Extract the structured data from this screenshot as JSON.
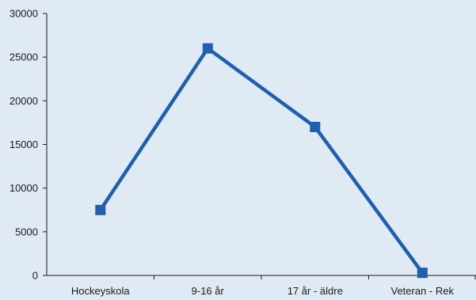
{
  "chart_data": {
    "type": "line",
    "title": "",
    "xlabel": "",
    "ylabel": "",
    "categories": [
      "Hockeyskola",
      "9-16 år",
      "17 år - äldre",
      "Veteran - Rek"
    ],
    "series": [
      {
        "values": [
          7500,
          26000,
          17000,
          300
        ]
      }
    ],
    "ylim": [
      0,
      30000
    ],
    "yticks": [
      0,
      5000,
      10000,
      15000,
      20000,
      25000,
      30000
    ],
    "ytick_labels": [
      "0",
      "5000",
      "10000",
      "15000",
      "20000",
      "25000",
      "30000"
    ],
    "grid": false,
    "legend": "none",
    "colors": {
      "background": "#dfeaf5",
      "series": "#1f5fac",
      "axis": "#1b1b1b"
    }
  }
}
